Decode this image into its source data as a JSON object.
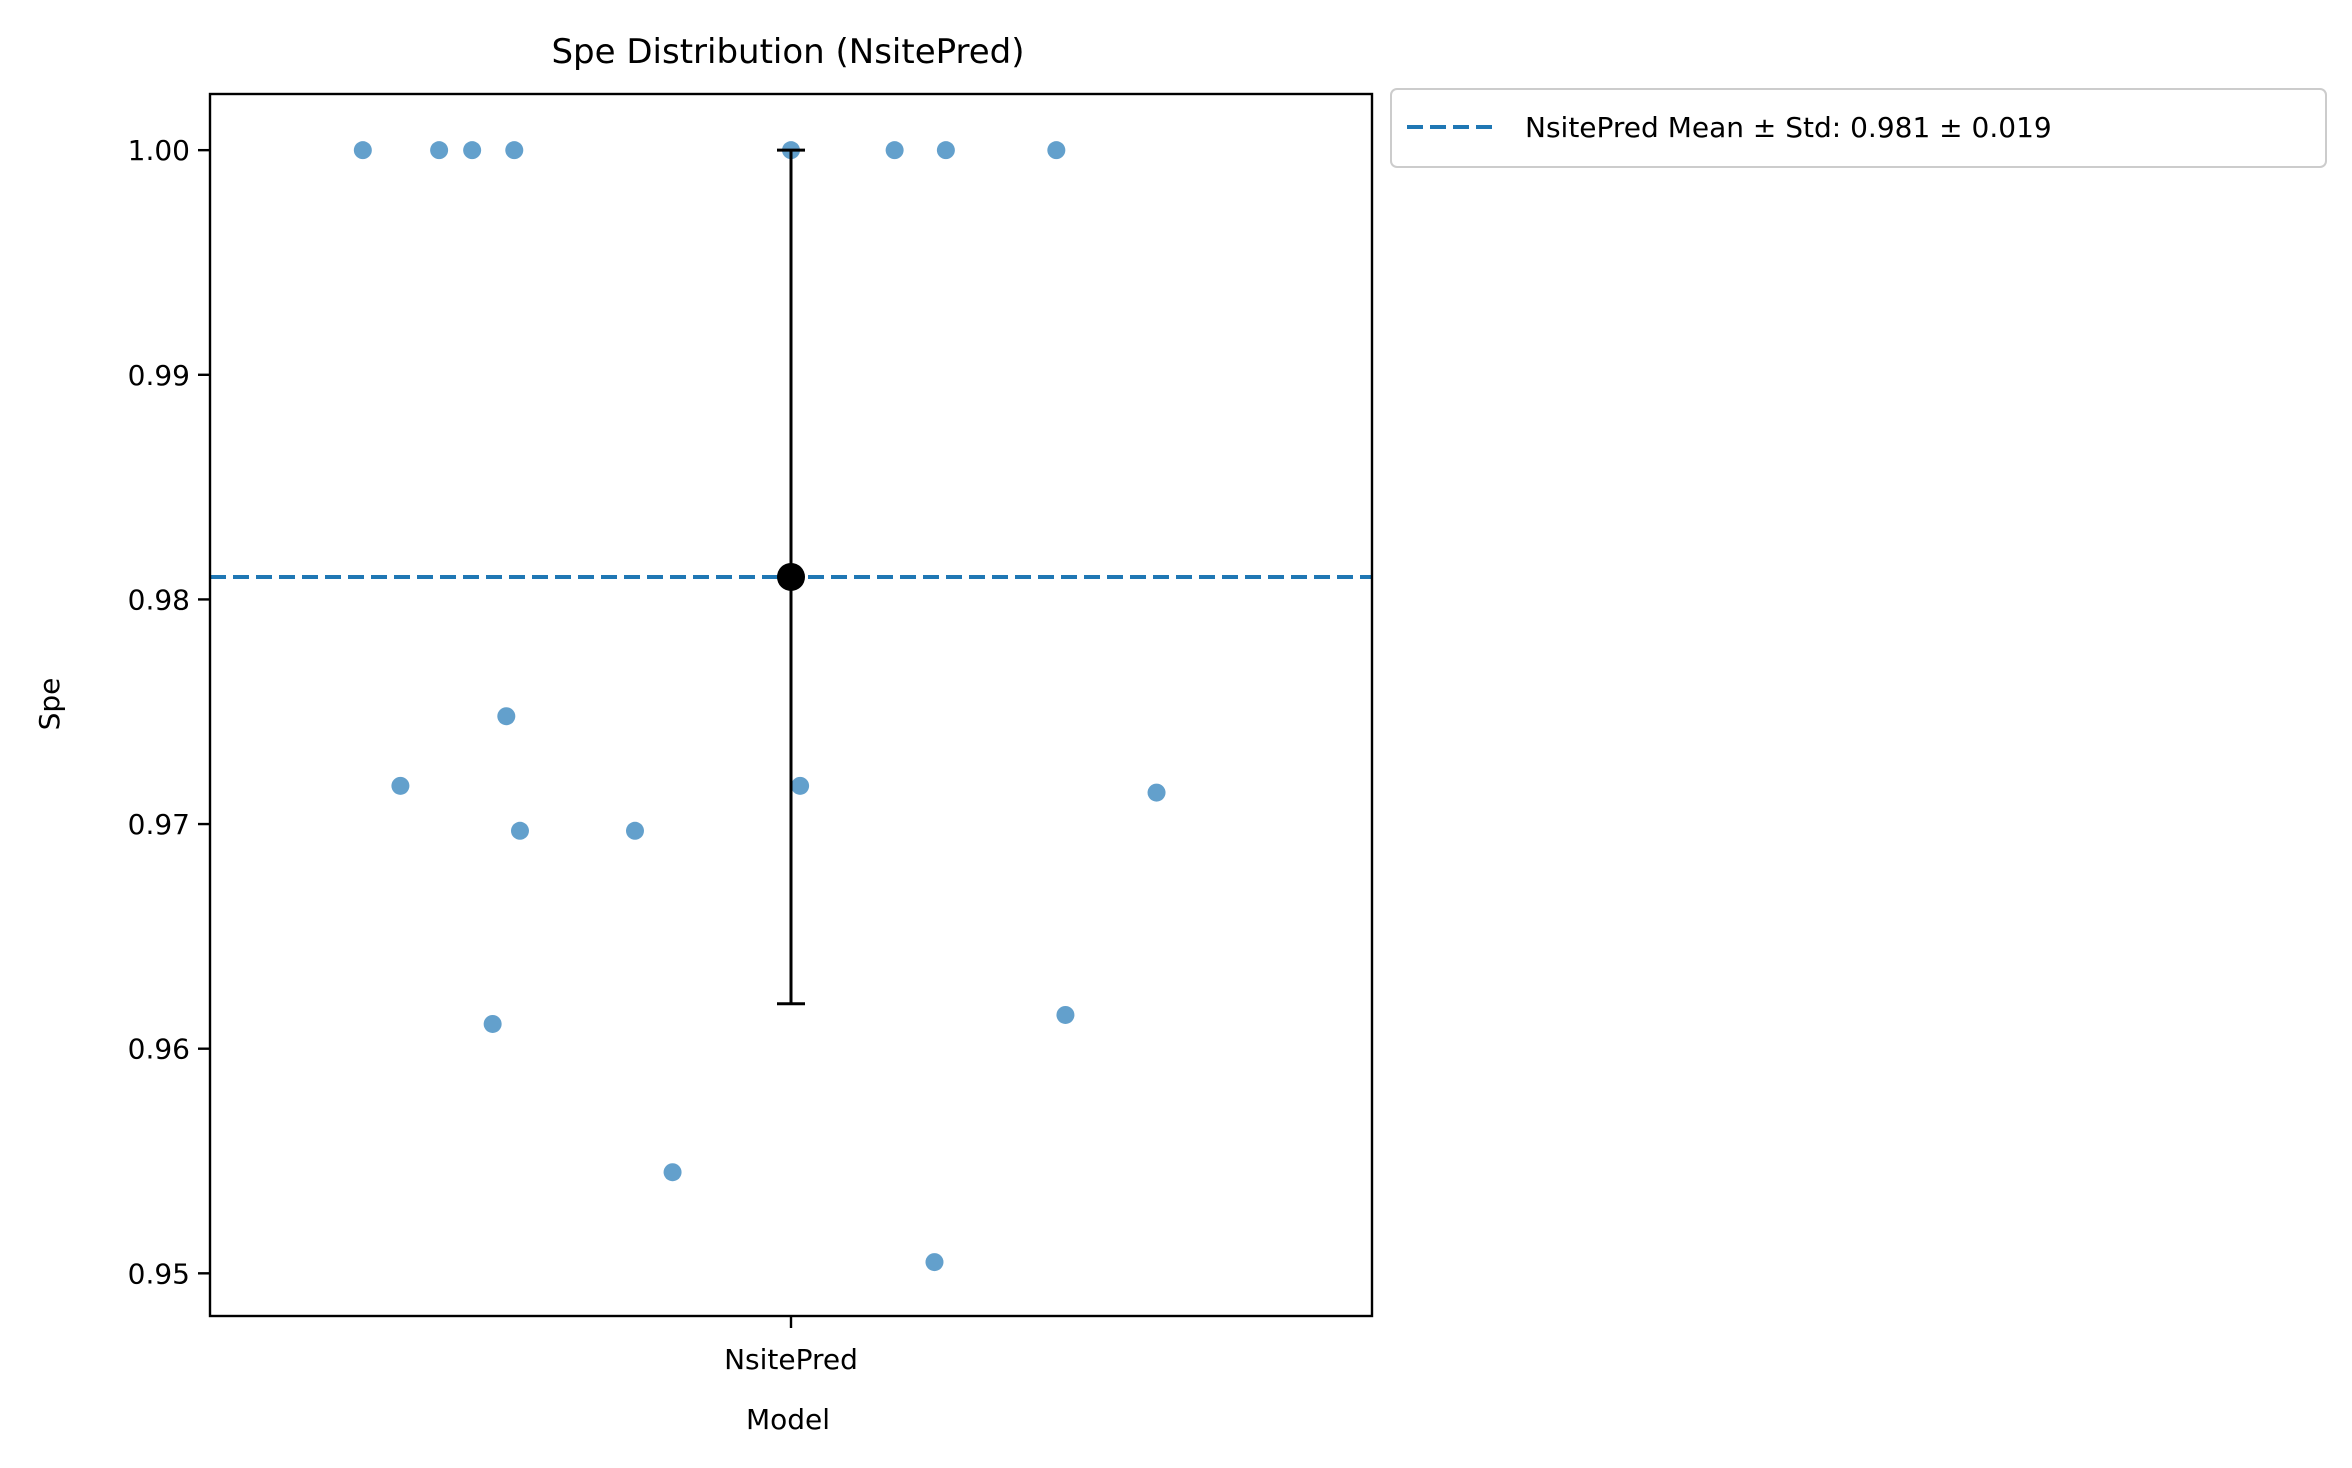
{
  "chart_data": {
    "type": "scatter",
    "title": "Spe Distribution (NsitePred)",
    "xlabel": "Model",
    "ylabel": "Spe",
    "categories": [
      "NsitePred"
    ],
    "ylim": [
      0.9481,
      1.0025
    ],
    "yticks": [
      0.95,
      0.96,
      0.97,
      0.98,
      0.99,
      1.0
    ],
    "ytick_labels": [
      "0.95",
      "0.96",
      "0.97",
      "0.98",
      "0.99",
      "1.00"
    ],
    "grid": false,
    "legend_position": "outside-top-right",
    "series": [
      {
        "name": "NsitePred",
        "color": "#5b9bc9",
        "points": [
          {
            "jitter": -0.376,
            "y": 1.0
          },
          {
            "jitter": -0.343,
            "y": 0.9717
          },
          {
            "jitter": -0.309,
            "y": 1.0
          },
          {
            "jitter": -0.28,
            "y": 1.0
          },
          {
            "jitter": -0.262,
            "y": 0.9611
          },
          {
            "jitter": -0.25,
            "y": 0.9748
          },
          {
            "jitter": -0.243,
            "y": 1.0
          },
          {
            "jitter": -0.238,
            "y": 0.9697
          },
          {
            "jitter": -0.137,
            "y": 0.9697
          },
          {
            "jitter": -0.104,
            "y": 0.9545
          },
          {
            "jitter": 0.0,
            "y": 1.0
          },
          {
            "jitter": 0.008,
            "y": 0.9717
          },
          {
            "jitter": 0.091,
            "y": 1.0
          },
          {
            "jitter": 0.126,
            "y": 0.9505
          },
          {
            "jitter": 0.136,
            "y": 1.0
          },
          {
            "jitter": 0.233,
            "y": 1.0
          },
          {
            "jitter": 0.241,
            "y": 0.9615
          },
          {
            "jitter": 0.321,
            "y": 0.9714
          }
        ]
      }
    ],
    "summary": {
      "mean": 0.981,
      "std": 0.019,
      "color": "#000000",
      "line_color": "#1f77b4",
      "legend_label": "NsitePred Mean ± Std: 0.981 ± 0.019"
    }
  }
}
